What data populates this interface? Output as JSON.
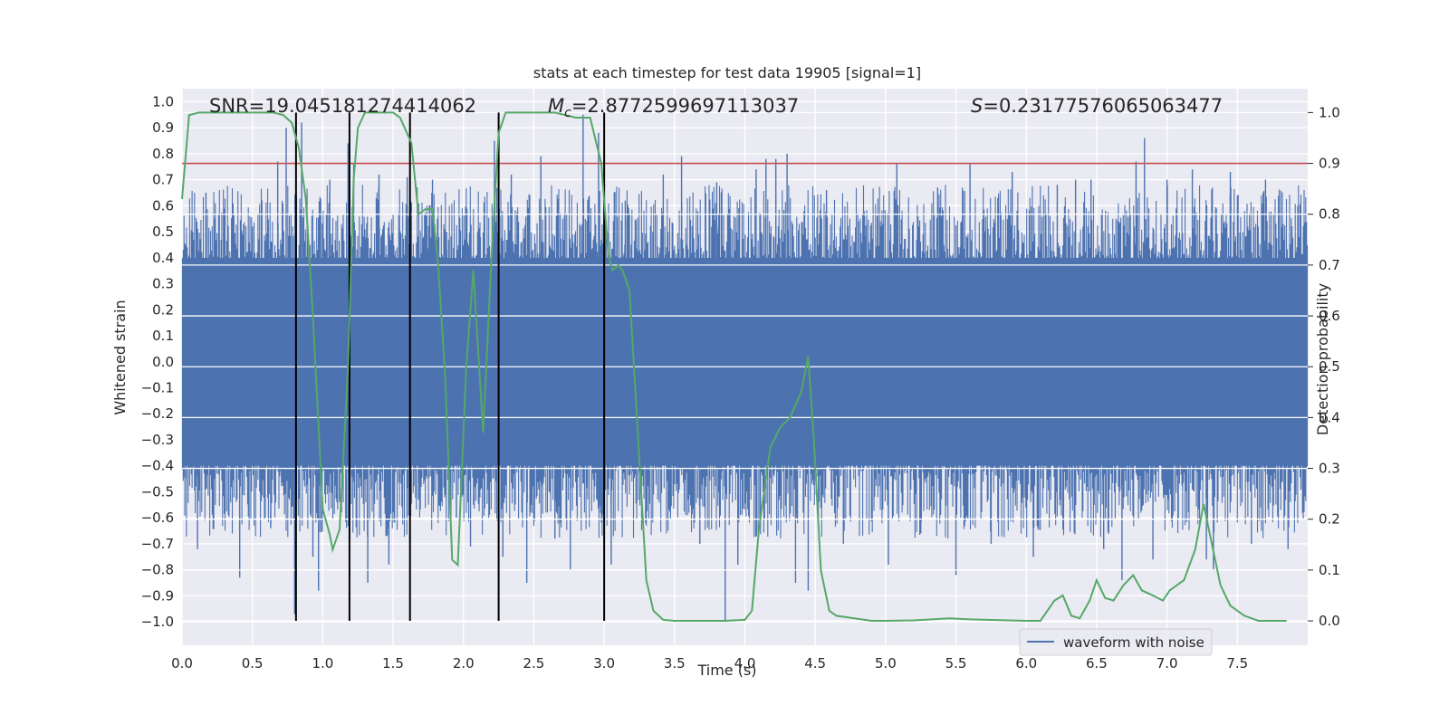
{
  "chart_data": {
    "type": "line",
    "title": "stats at each timestep for test data 19905 [signal=1]",
    "xlabel": "Time (s)",
    "ylabel": "Whitened strain",
    "ylabel_right": "Detection probability",
    "xlim": [
      0.0,
      8.0
    ],
    "ylim": [
      -1.09,
      1.05
    ],
    "ylim_right": [
      -0.048,
      1.047
    ],
    "x_ticks": [
      "0.0",
      "0.5",
      "1.0",
      "1.5",
      "2.0",
      "2.5",
      "3.0",
      "3.5",
      "4.0",
      "4.5",
      "5.0",
      "5.5",
      "6.0",
      "6.5",
      "7.0",
      "7.5"
    ],
    "y_ticks": [
      "1.0",
      "0.9",
      "0.8",
      "0.7",
      "0.6",
      "0.5",
      "0.4",
      "0.3",
      "0.2",
      "0.1",
      "0.0",
      "-0.1",
      "-0.2",
      "-0.3",
      "-0.4",
      "-0.5",
      "-0.6",
      "-0.7",
      "-0.8",
      "-0.9",
      "-1.0"
    ],
    "y_ticks_right": [
      "1.0",
      "0.9",
      "0.8",
      "0.7",
      "0.6",
      "0.5",
      "0.4",
      "0.3",
      "0.2",
      "0.1",
      "0.0"
    ],
    "annotations": {
      "snr": "SNR=19.045181274414062",
      "mc_symbol": "M",
      "mc_sub": "c",
      "mc_value": "=2.8772599697113037",
      "s_symbol": "S",
      "s_value": "=0.23177576065063477"
    },
    "legend": {
      "label": "waveform with noise",
      "position": "lower-right"
    },
    "threshold": {
      "probability": 0.9,
      "color": "#c44e52"
    },
    "vertical_markers": [
      0.81,
      1.19,
      1.62,
      2.25,
      3.0
    ],
    "waveform": {
      "name": "waveform with noise",
      "color": "#4c72b0",
      "core_range": [
        -0.4,
        0.4
      ],
      "seed": 19905
    },
    "probability_series": {
      "name": "Detection probability",
      "color": "#55a868",
      "x": [
        0.0,
        0.05,
        0.12,
        0.3,
        0.5,
        0.65,
        0.72,
        0.78,
        0.83,
        0.88,
        0.93,
        1.0,
        1.05,
        1.07,
        1.12,
        1.18,
        1.22,
        1.25,
        1.3,
        1.4,
        1.5,
        1.55,
        1.63,
        1.68,
        1.73,
        1.78,
        1.82,
        1.87,
        1.92,
        1.96,
        2.02,
        2.07,
        2.14,
        2.2,
        2.25,
        2.3,
        2.36,
        2.5,
        2.65,
        2.8,
        2.9,
        2.98,
        3.03,
        3.06,
        3.1,
        3.13,
        3.18,
        3.3,
        3.35,
        3.42,
        3.5,
        3.6,
        3.75,
        3.85,
        4.0,
        4.05,
        4.1,
        4.18,
        4.25,
        4.32,
        4.4,
        4.45,
        4.49,
        4.54,
        4.6,
        4.65,
        4.7,
        4.9,
        5.0,
        5.2,
        5.45,
        5.6,
        6.0,
        6.1,
        6.15,
        6.2,
        6.26,
        6.32,
        6.38,
        6.45,
        6.5,
        6.56,
        6.62,
        6.69,
        6.76,
        6.82,
        6.9,
        6.97,
        7.02,
        7.07,
        7.12,
        7.2,
        7.26,
        7.32,
        7.38,
        7.45,
        7.55,
        7.65,
        7.75,
        7.85
      ],
      "values": [
        0.83,
        0.995,
        1.0,
        1.0,
        1.0,
        1.0,
        0.995,
        0.98,
        0.93,
        0.83,
        0.6,
        0.22,
        0.17,
        0.14,
        0.18,
        0.5,
        0.87,
        0.97,
        1.0,
        1.0,
        1.0,
        0.99,
        0.94,
        0.8,
        0.81,
        0.81,
        0.7,
        0.48,
        0.12,
        0.11,
        0.5,
        0.69,
        0.37,
        0.72,
        0.96,
        1.0,
        1.0,
        1.0,
        1.0,
        0.99,
        0.99,
        0.9,
        0.72,
        0.69,
        0.7,
        0.69,
        0.65,
        0.08,
        0.02,
        0.002,
        0.0,
        0.0,
        0.0,
        0.0,
        0.002,
        0.02,
        0.18,
        0.34,
        0.38,
        0.4,
        0.45,
        0.52,
        0.36,
        0.1,
        0.02,
        0.01,
        0.008,
        0.0,
        0.0,
        0.001,
        0.005,
        0.003,
        0.0,
        0.0,
        0.02,
        0.04,
        0.05,
        0.01,
        0.005,
        0.04,
        0.08,
        0.045,
        0.04,
        0.07,
        0.09,
        0.06,
        0.05,
        0.04,
        0.06,
        0.07,
        0.08,
        0.14,
        0.23,
        0.15,
        0.07,
        0.03,
        0.01,
        0.0,
        0.0,
        0.0
      ]
    },
    "spikes": [
      {
        "x": 0.03,
        "v": -0.45
      },
      {
        "x": 0.11,
        "v": -0.72
      },
      {
        "x": 0.17,
        "v": 0.65
      },
      {
        "x": 0.3,
        "v": 0.56
      },
      {
        "x": 0.41,
        "v": -0.83
      },
      {
        "x": 0.5,
        "v": 0.52
      },
      {
        "x": 0.63,
        "v": -0.64
      },
      {
        "x": 0.68,
        "v": 0.77
      },
      {
        "x": 0.74,
        "v": 0.9
      },
      {
        "x": 0.8,
        "v": -0.97
      },
      {
        "x": 0.85,
        "v": 0.92
      },
      {
        "x": 0.93,
        "v": -0.75
      },
      {
        "x": 0.97,
        "v": -0.88
      },
      {
        "x": 1.05,
        "v": 0.7
      },
      {
        "x": 1.12,
        "v": -0.54
      },
      {
        "x": 1.18,
        "v": 0.84
      },
      {
        "x": 1.22,
        "v": 0.76
      },
      {
        "x": 1.32,
        "v": -0.85
      },
      {
        "x": 1.4,
        "v": 0.72
      },
      {
        "x": 1.47,
        "v": -0.78
      },
      {
        "x": 1.6,
        "v": 0.71
      },
      {
        "x": 1.68,
        "v": -0.53
      },
      {
        "x": 1.78,
        "v": 0.7
      },
      {
        "x": 1.88,
        "v": 0.5
      },
      {
        "x": 1.95,
        "v": -0.6
      },
      {
        "x": 2.05,
        "v": -0.71
      },
      {
        "x": 2.12,
        "v": 0.48
      },
      {
        "x": 2.22,
        "v": 0.85
      },
      {
        "x": 2.28,
        "v": -0.75
      },
      {
        "x": 2.34,
        "v": 0.72
      },
      {
        "x": 2.45,
        "v": -0.85
      },
      {
        "x": 2.55,
        "v": 0.79
      },
      {
        "x": 2.65,
        "v": -0.68
      },
      {
        "x": 2.76,
        "v": -0.8
      },
      {
        "x": 2.85,
        "v": 0.95
      },
      {
        "x": 2.96,
        "v": 0.88
      },
      {
        "x": 3.05,
        "v": -0.78
      },
      {
        "x": 3.15,
        "v": 0.62
      },
      {
        "x": 3.3,
        "v": -0.55
      },
      {
        "x": 3.42,
        "v": 0.72
      },
      {
        "x": 3.55,
        "v": 0.79
      },
      {
        "x": 3.68,
        "v": -0.7
      },
      {
        "x": 3.8,
        "v": 0.69
      },
      {
        "x": 3.86,
        "v": -1.0
      },
      {
        "x": 3.95,
        "v": -0.78
      },
      {
        "x": 4.08,
        "v": 0.74
      },
      {
        "x": 4.15,
        "v": 0.78
      },
      {
        "x": 4.22,
        "v": 0.78
      },
      {
        "x": 4.3,
        "v": 0.8
      },
      {
        "x": 4.36,
        "v": -0.85
      },
      {
        "x": 4.45,
        "v": -0.88
      },
      {
        "x": 4.58,
        "v": 0.66
      },
      {
        "x": 4.7,
        "v": -0.7
      },
      {
        "x": 4.85,
        "v": 0.56
      },
      {
        "x": 5.02,
        "v": -0.78
      },
      {
        "x": 5.08,
        "v": 0.76
      },
      {
        "x": 5.25,
        "v": -0.66
      },
      {
        "x": 5.37,
        "v": 0.67
      },
      {
        "x": 5.5,
        "v": -0.82
      },
      {
        "x": 5.6,
        "v": 0.76
      },
      {
        "x": 5.75,
        "v": -0.7
      },
      {
        "x": 5.9,
        "v": 0.73
      },
      {
        "x": 6.05,
        "v": -0.75
      },
      {
        "x": 6.22,
        "v": 0.68
      },
      {
        "x": 6.35,
        "v": 0.7
      },
      {
        "x": 6.46,
        "v": 0.7
      },
      {
        "x": 6.55,
        "v": -0.72
      },
      {
        "x": 6.68,
        "v": -0.84
      },
      {
        "x": 6.78,
        "v": 0.77
      },
      {
        "x": 6.84,
        "v": 0.86
      },
      {
        "x": 6.9,
        "v": -0.76
      },
      {
        "x": 7.0,
        "v": 0.7
      },
      {
        "x": 7.08,
        "v": -0.6
      },
      {
        "x": 7.18,
        "v": 0.74
      },
      {
        "x": 7.28,
        "v": -0.76
      },
      {
        "x": 7.33,
        "v": -0.8
      },
      {
        "x": 7.45,
        "v": 0.73
      },
      {
        "x": 7.6,
        "v": -0.7
      },
      {
        "x": 7.7,
        "v": 0.7
      },
      {
        "x": 7.86,
        "v": -0.72
      }
    ]
  }
}
